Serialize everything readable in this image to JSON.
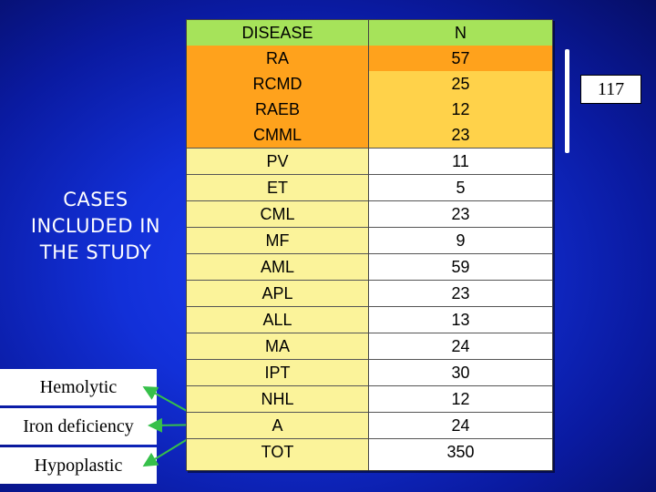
{
  "side_title": [
    "CASES",
    "INCLUDED IN",
    "THE STUDY"
  ],
  "notes": [
    "Hemolytic",
    "Iron deficiency",
    "Hypoplastic"
  ],
  "table": {
    "header": {
      "disease": "DISEASE",
      "n": "N"
    },
    "rows": [
      {
        "disease": "RA",
        "n": "57"
      },
      {
        "disease": "RCMD",
        "n": "25"
      },
      {
        "disease": "RAEB",
        "n": "12"
      },
      {
        "disease": "CMML",
        "n": "23"
      },
      {
        "disease": "PV",
        "n": "11"
      },
      {
        "disease": "ET",
        "n": "5"
      },
      {
        "disease": "CML",
        "n": "23"
      },
      {
        "disease": "MF",
        "n": "9"
      },
      {
        "disease": "AML",
        "n": "59"
      },
      {
        "disease": "APL",
        "n": "23"
      },
      {
        "disease": "ALL",
        "n": "13"
      },
      {
        "disease": "MA",
        "n": "24"
      },
      {
        "disease": "IPT",
        "n": "30"
      },
      {
        "disease": "NHL",
        "n": "12"
      },
      {
        "disease": "A",
        "n": "24"
      },
      {
        "disease": "TOT",
        "n": "350"
      }
    ]
  },
  "bracket_total": "117",
  "colors": {
    "background": "#1230d8",
    "header": "#a6e35a",
    "orange": "#ffa21c",
    "gold": "#ffd24a",
    "yellow": "#fbf39a",
    "arrows": "#36c04a"
  }
}
